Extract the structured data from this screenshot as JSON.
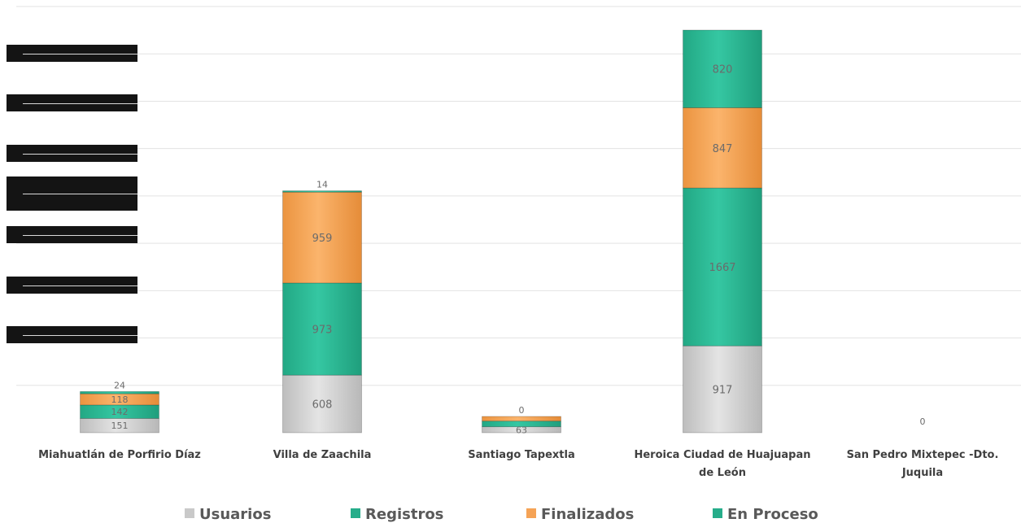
{
  "chart_data": {
    "type": "bar",
    "stacked": true,
    "categories": [
      "Miahuatlán de Porfirio Díaz",
      "Villa de Zaachila",
      "Santiago Tapextla",
      "Heroica Ciudad de Huajuapan de León",
      "San Pedro Mixtepec -Dto. Juquila"
    ],
    "series": [
      {
        "name": "Usuarios",
        "color": "#d4d4d4",
        "values": [
          151,
          608,
          63,
          917,
          0
        ]
      },
      {
        "name": "Registros",
        "color": "#2ebf99",
        "values": [
          142,
          973,
          60,
          1667,
          0
        ]
      },
      {
        "name": "Finalizados",
        "color": "#f5a356",
        "values": [
          118,
          959,
          49,
          847,
          0
        ]
      },
      {
        "name": "En Proceso",
        "color": "#2ebf99",
        "values": [
          24,
          14,
          0,
          820,
          0
        ]
      }
    ],
    "data_labels": {
      "Miahuatlán de Porfirio Díaz": [
        "151",
        "142",
        "118",
        "24"
      ],
      "Villa de Zaachila": [
        "608",
        "973",
        "959",
        "14"
      ],
      "Santiago Tapextla": [
        "63",
        "",
        "",
        "0"
      ],
      "Heroica Ciudad de Huajuapan de León": [
        "917",
        "1667",
        "847",
        "820"
      ],
      "San Pedro Mixtepec -Dto. Juquila": [
        "",
        "",
        "",
        "0"
      ]
    },
    "title": "",
    "xlabel": "",
    "ylabel": "",
    "ylim": [
      0,
      4500
    ],
    "grid": true,
    "legend": "bottom"
  },
  "labels": {
    "categories": [
      [
        "Miahuatlán de Porfirio Díaz"
      ],
      [
        "Villa de Zaachila"
      ],
      [
        "Santiago Tapextla"
      ],
      [
        "Heroica Ciudad de Huajuapan",
        "de León"
      ],
      [
        "San Pedro Mixtepec -Dto.",
        "Juquila"
      ]
    ]
  }
}
